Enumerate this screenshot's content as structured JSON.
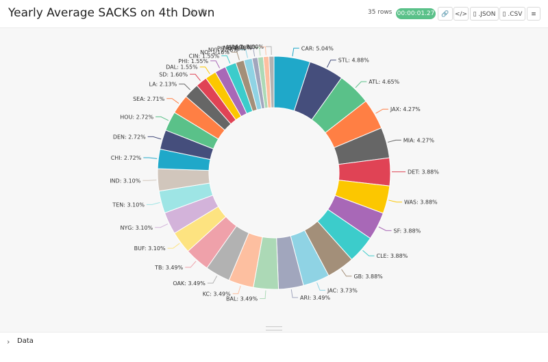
{
  "header": {
    "title": "Yearly Average SACKS on 4th Down",
    "rows": "35 rows",
    "timer": "00:00:01.27",
    "json_label": ".JSON",
    "csv_label": ".CSV",
    "star_icon": "star-icon",
    "edit_icon": "edit-icon"
  },
  "footer": {
    "data_label": "Data"
  },
  "chart_data": {
    "type": "pie",
    "donut": true,
    "slices": [
      {
        "label": "CAR: 5.04%",
        "value": 5.04,
        "color": "#1fa8c9"
      },
      {
        "label": "STL: 4.88%",
        "value": 4.88,
        "color": "#454e7c"
      },
      {
        "label": "ATL: 4.65%",
        "value": 4.65,
        "color": "#5ac189"
      },
      {
        "label": "JAX: 4.27%",
        "value": 4.27,
        "color": "#ff7f44"
      },
      {
        "label": "MIA: 4.27%",
        "value": 4.27,
        "color": "#666666"
      },
      {
        "label": "DET: 3.88%",
        "value": 3.88,
        "color": "#e04355"
      },
      {
        "label": "WAS: 3.88%",
        "value": 3.88,
        "color": "#fcc700"
      },
      {
        "label": "SF: 3.88%",
        "value": 3.88,
        "color": "#a868b7"
      },
      {
        "label": "CLE: 3.88%",
        "value": 3.88,
        "color": "#3ccccb"
      },
      {
        "label": "GB: 3.88%",
        "value": 3.88,
        "color": "#a38f79"
      },
      {
        "label": "JAC: 3.73%",
        "value": 3.73,
        "color": "#8fd3e4"
      },
      {
        "label": "ARI: 3.49%",
        "value": 3.49,
        "color": "#a1a6bd"
      },
      {
        "label": "BAL: 3.49%",
        "value": 3.49,
        "color": "#acd9b6"
      },
      {
        "label": "KC: 3.49%",
        "value": 3.49,
        "color": "#fdbfa0"
      },
      {
        "label": "OAK: 3.49%",
        "value": 3.49,
        "color": "#b2b2b2"
      },
      {
        "label": "TB: 3.49%",
        "value": 3.49,
        "color": "#efa1aa"
      },
      {
        "label": "BUF: 3.10%",
        "value": 3.1,
        "color": "#fde380"
      },
      {
        "label": "NYG: 3.10%",
        "value": 3.1,
        "color": "#d3b3da"
      },
      {
        "label": "TEN: 3.10%",
        "value": 3.1,
        "color": "#9ee5e5"
      },
      {
        "label": "IND: 3.10%",
        "value": 3.1,
        "color": "#d1c6bc"
      },
      {
        "label": "CHI: 2.72%",
        "value": 2.72,
        "color": "#1fa8c9"
      },
      {
        "label": "DEN: 2.72%",
        "value": 2.72,
        "color": "#454e7c"
      },
      {
        "label": "HOU: 2.72%",
        "value": 2.72,
        "color": "#5ac189"
      },
      {
        "label": "SEA: 2.71%",
        "value": 2.71,
        "color": "#ff7f44"
      },
      {
        "label": "LA: 2.13%",
        "value": 2.13,
        "color": "#666666"
      },
      {
        "label": "SD: 1.60%",
        "value": 1.6,
        "color": "#e04355"
      },
      {
        "label": "DAL: 1.55%",
        "value": 1.55,
        "color": "#fcc700"
      },
      {
        "label": "PHI: 1.55%",
        "value": 1.55,
        "color": "#a868b7"
      },
      {
        "label": "CIN: 1.55%",
        "value": 1.55,
        "color": "#3ccccb"
      },
      {
        "label": "NO: 1.16%",
        "value": 1.16,
        "color": "#a38f79"
      },
      {
        "label": "NYJ: 1.16%",
        "value": 1.16,
        "color": "#8fd3e4"
      },
      {
        "label": "PIT: 0.78%",
        "value": 0.78,
        "color": "#a1a6bd"
      },
      {
        "label": "NE: 0.78%",
        "value": 0.78,
        "color": "#acd9b6"
      },
      {
        "label": "MIN: 0.78%",
        "value": 0.78,
        "color": "#fdbfa0"
      },
      {
        "label": "LAC: 0.00%",
        "value": 0.0,
        "color": "#b2b2b2"
      }
    ]
  }
}
